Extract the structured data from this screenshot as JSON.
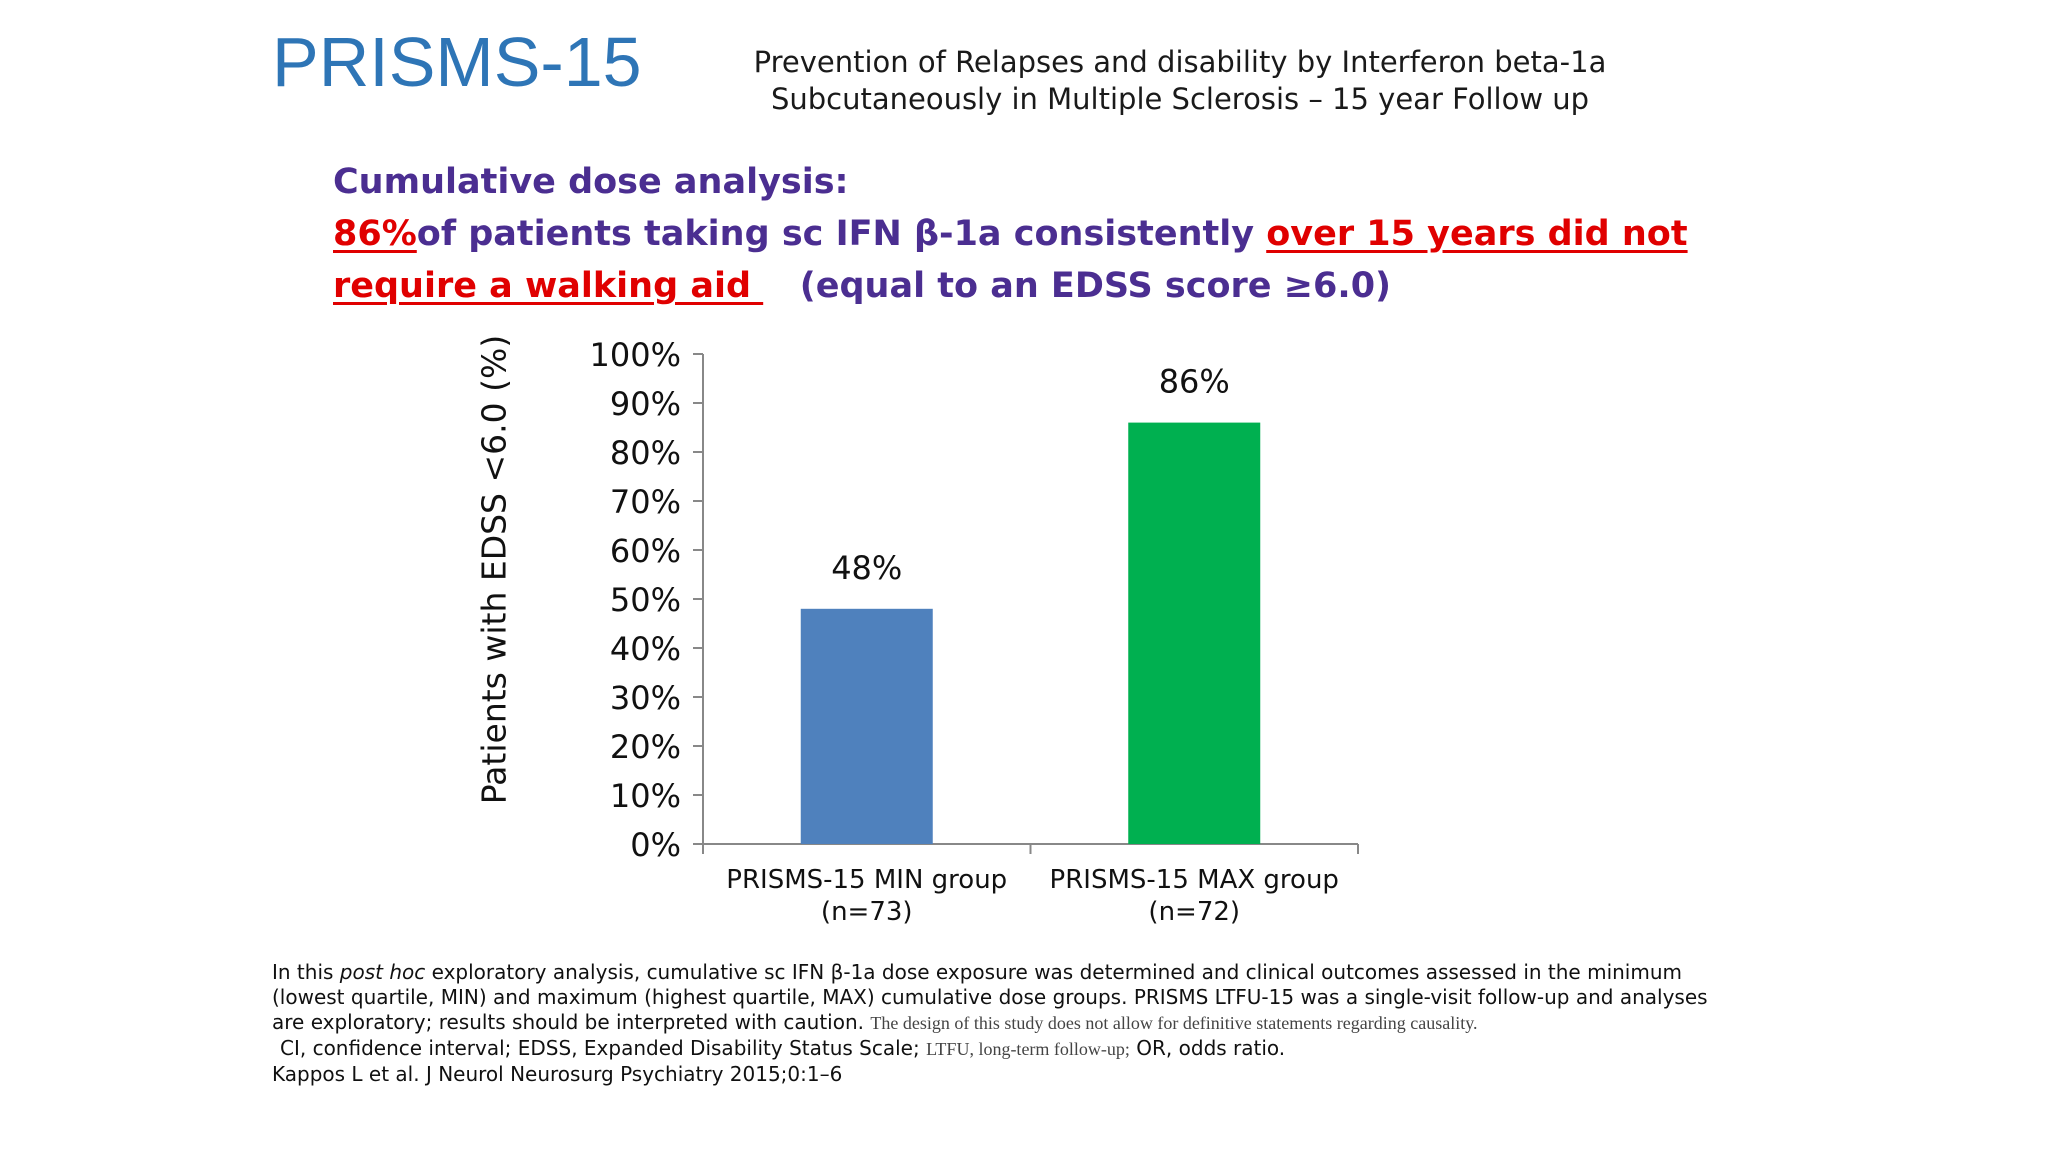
{
  "header": {
    "brand": "PRISMS-15",
    "subtitle_line1": "Prevention of Relapses and disability by Interferon beta-1a",
    "subtitle_line2": "Subcutaneously in Multiple Sclerosis – 15 year Follow up"
  },
  "headline": {
    "line1": "Cumulative dose analysis:",
    "l2_red1": "86%",
    "l2_text": "of patients taking sc IFN β-1a consistently ",
    "l2_red2": "over 15 years did not",
    "l3_red": "require a walking aid ",
    "l3_text": "   (equal to an EDSS score ≥6.0)"
  },
  "colors": {
    "brand": "#2e75b6",
    "headline": "#4b2e91",
    "highlight": "#e00000",
    "min_bar": "#4f81bd",
    "max_bar": "#00b050"
  },
  "chart_data": {
    "type": "bar",
    "categories": [
      "PRISMS-15 MIN group\n(n=73)",
      "PRISMS-15 MAX group\n(n=72)"
    ],
    "values": [
      48,
      86
    ],
    "data_labels": [
      "48%",
      "86%"
    ],
    "bar_colors": [
      "#4f81bd",
      "#00b050"
    ],
    "ylabel": "Patients with EDSS <6.0 (%)",
    "ylim": [
      0,
      100
    ],
    "yticks": [
      "0%",
      "10%",
      "20%",
      "30%",
      "40%",
      "50%",
      "60%",
      "70%",
      "80%",
      "90%",
      "100%"
    ],
    "grid": false
  },
  "footnote": {
    "p1_a": "In this ",
    "p1_italic": "post hoc",
    "p1_b": " exploratory analysis, cumulative sc IFN β-1a dose exposure was determined and clinical outcomes assessed in the minimum (lowest quartile, MIN) and maximum (highest quartile, MAX) cumulative dose groups. PRISMS LTFU-15 was a single-visit follow-up and analyses are exploratory; results should be interpreted with caution. ",
    "p1_small": "The design of this study does not allow for definitive statements regarding causality.",
    "abbr_a": "CI, confidence interval; EDSS, Expanded Disability Status Scale; ",
    "abbr_small": "LTFU, long-term follow-up;",
    "abbr_b": " OR, odds ratio.",
    "reference": "Kappos L et al. J Neurol Neurosurg Psychiatry 2015;0:1–6"
  }
}
